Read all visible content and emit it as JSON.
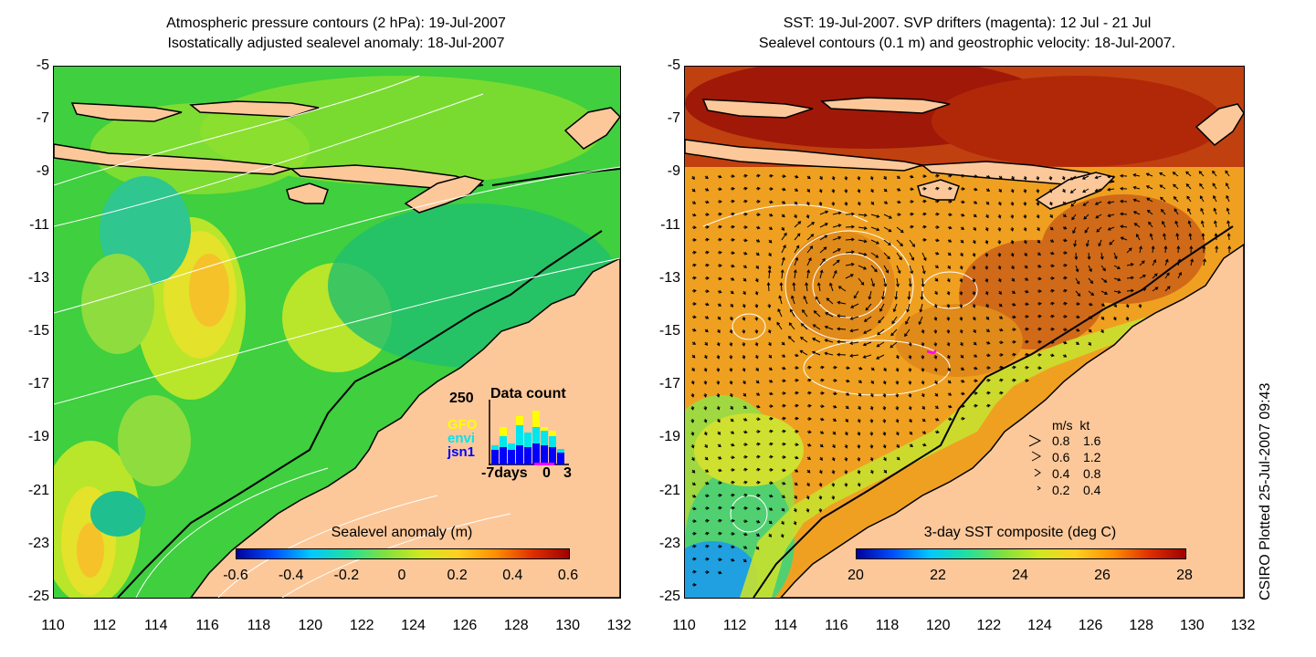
{
  "left_panel": {
    "title_line1": "Atmospheric pressure contours (2 hPa): 19-Jul-2007",
    "title_line2": "Isostatically adjusted sealevel anomaly: 18-Jul-2007",
    "y_ticks": [
      "-5",
      "-7",
      "-9",
      "-11",
      "-13",
      "-15",
      "-17",
      "-19",
      "-21",
      "-23",
      "-25"
    ],
    "x_ticks": [
      "110",
      "112",
      "114",
      "116",
      "118",
      "120",
      "122",
      "124",
      "126",
      "128",
      "130",
      "132"
    ],
    "colorbar": {
      "label": "Sealevel anomaly (m)",
      "ticks": [
        "-0.6",
        "-0.4",
        "-0.2",
        "0",
        "0.2",
        "0.4",
        "0.6"
      ]
    },
    "data_count": {
      "title": "Data count",
      "max_label": "250",
      "satellites": [
        {
          "name": "GFO",
          "color": "#ffff00"
        },
        {
          "name": "envi",
          "color": "#00e5ee"
        },
        {
          "name": "jsn1",
          "color": "#0000ff"
        }
      ],
      "axis_label_left": "-7days",
      "axis_label_mid": "0",
      "axis_label_right": "3"
    }
  },
  "right_panel": {
    "title_line1": "SST: 19-Jul-2007. SVP drifters (magenta): 12 Jul - 21 Jul",
    "title_line2": "Sealevel contours (0.1 m) and geostrophic velocity: 18-Jul-2007.",
    "y_ticks": [
      "-5",
      "-7",
      "-9",
      "-11",
      "-13",
      "-15",
      "-17",
      "-19",
      "-21",
      "-23",
      "-25"
    ],
    "x_ticks": [
      "110",
      "112",
      "114",
      "116",
      "118",
      "120",
      "122",
      "124",
      "126",
      "128",
      "130",
      "132"
    ],
    "colorbar": {
      "label": "3-day SST composite (deg C)",
      "ticks": [
        "20",
        "22",
        "24",
        "26",
        "28"
      ]
    },
    "velocity_legend": {
      "header": "m/s  kt",
      "rows": [
        {
          "ms": "0.8",
          "kt": "1.6"
        },
        {
          "ms": "0.6",
          "kt": "1.2"
        },
        {
          "ms": "0.4",
          "kt": "0.8"
        },
        {
          "ms": "0.2",
          "kt": "0.4"
        }
      ]
    }
  },
  "credit": "CSIRO Plotted 25-Jul-2007 09:43",
  "colors": {
    "land": "#fcc89a",
    "ocean_sla": "#3fcf3f",
    "ocean_sst": "#f0a020",
    "coastline": "#000000"
  }
}
